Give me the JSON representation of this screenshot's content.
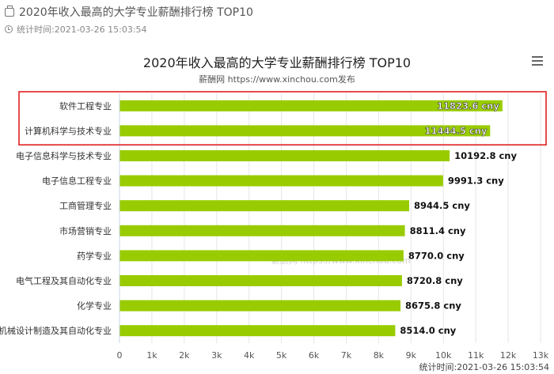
{
  "header": {
    "title": "2020年收入最高的大学专业薪酬排行榜 TOP10",
    "time_label": "统计时间:2021-03-26 15:03:54"
  },
  "chart_data": {
    "type": "bar",
    "orientation": "horizontal",
    "title": "2020年收入最高的大学专业薪酬排行榜 TOP10",
    "subtitle": "薪酬网 https://www.xinchou.com发布",
    "categories": [
      "软件工程专业",
      "计算机科学与技术专业",
      "电子信息科学与技术专业",
      "电子信息工程专业",
      "工商管理专业",
      "市场营销专业",
      "药学专业",
      "电气工程及其自动化专业",
      "化学专业",
      "机械设计制造及其自动化专业"
    ],
    "values": [
      11823.6,
      11444.5,
      10192.8,
      9991.3,
      8944.5,
      8811.4,
      8770.0,
      8720.8,
      8675.8,
      8514.0
    ],
    "data_labels": [
      "11823.6 cny",
      "11444.5 cny",
      "10192.8 cny",
      "9991.3 cny",
      "8944.5 cny",
      "8811.4 cny",
      "8770.0 cny",
      "8720.8 cny",
      "8675.8 cny",
      "8514.0 cny"
    ],
    "xlim": [
      0,
      13000
    ],
    "x_tick_labels": [
      "0",
      "1k",
      "2k",
      "3k",
      "4k",
      "5k",
      "6k",
      "7k",
      "8k",
      "9k",
      "10k",
      "11k",
      "12k",
      "13k"
    ],
    "grid": true,
    "bar_color": "#99cc00",
    "highlight_color": "#e02020",
    "highlight_indices": [
      0,
      1
    ],
    "watermark": "薪酬网 https://www.xinchou.com",
    "footer": "统计时间:2021-03-26 15:03:54"
  }
}
